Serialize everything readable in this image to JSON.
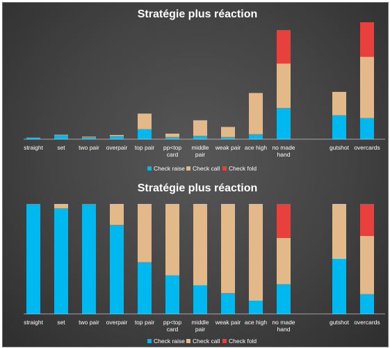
{
  "colors": {
    "check_raise": "#00b8f0",
    "check_call": "#e3b98a",
    "check_fold": "#e8403c",
    "axis": "#c8c8c8"
  },
  "chart_data": [
    {
      "type": "bar",
      "stacked": true,
      "title": "Stratégie plus réaction",
      "categories": [
        [
          "straight"
        ],
        [
          "set"
        ],
        [
          "two pair"
        ],
        [
          "overpair"
        ],
        [
          "top pair"
        ],
        [
          "pp<top",
          "card"
        ],
        [
          "middle",
          "pair"
        ],
        [
          "weak pair"
        ],
        [
          "ace high"
        ],
        [
          "no made",
          "hand"
        ],
        [
          "gutshot"
        ],
        [
          "overcards"
        ]
      ],
      "gap_before_index": 10,
      "ylim": [
        0,
        100
      ],
      "series": [
        {
          "name": "Check raise",
          "values": [
            1.5,
            3.5,
            1.8,
            2.8,
            9,
            2,
            3,
            2,
            4.5,
            28,
            21.5,
            19
          ]
        },
        {
          "name": "Check call",
          "values": [
            0,
            0.5,
            0.5,
            1,
            14,
            3,
            14,
            9,
            37,
            40,
            21,
            55
          ]
        },
        {
          "name": "Check fold",
          "values": [
            0,
            0,
            0,
            0,
            0,
            0,
            0,
            0,
            0,
            30,
            0,
            31
          ]
        }
      ],
      "legend_position": "bottom",
      "grid": false
    },
    {
      "type": "bar",
      "stacked": true,
      "percent": true,
      "title": "Stratégie plus réaction",
      "categories": [
        [
          "straight"
        ],
        [
          "set"
        ],
        [
          "two pair"
        ],
        [
          "overpair"
        ],
        [
          "top pair"
        ],
        [
          "pp<top",
          "card"
        ],
        [
          "middle",
          "pair"
        ],
        [
          "weak pair"
        ],
        [
          "ace high"
        ],
        [
          "no made",
          "hand"
        ],
        [
          "gutshot"
        ],
        [
          "overcards"
        ]
      ],
      "gap_before_index": 10,
      "ylim": [
        0,
        100
      ],
      "series": [
        {
          "name": "Check raise",
          "values": [
            100,
            96,
            100,
            81,
            47,
            35,
            26,
            19,
            12,
            27,
            50,
            18
          ]
        },
        {
          "name": "Check call",
          "values": [
            0,
            4,
            0,
            19,
            53,
            65,
            74,
            81,
            88,
            42,
            50,
            53
          ]
        },
        {
          "name": "Check fold",
          "values": [
            0,
            0,
            0,
            0,
            0,
            0,
            0,
            0,
            0,
            31,
            0,
            29
          ]
        }
      ],
      "legend_position": "bottom",
      "grid": false
    }
  ]
}
